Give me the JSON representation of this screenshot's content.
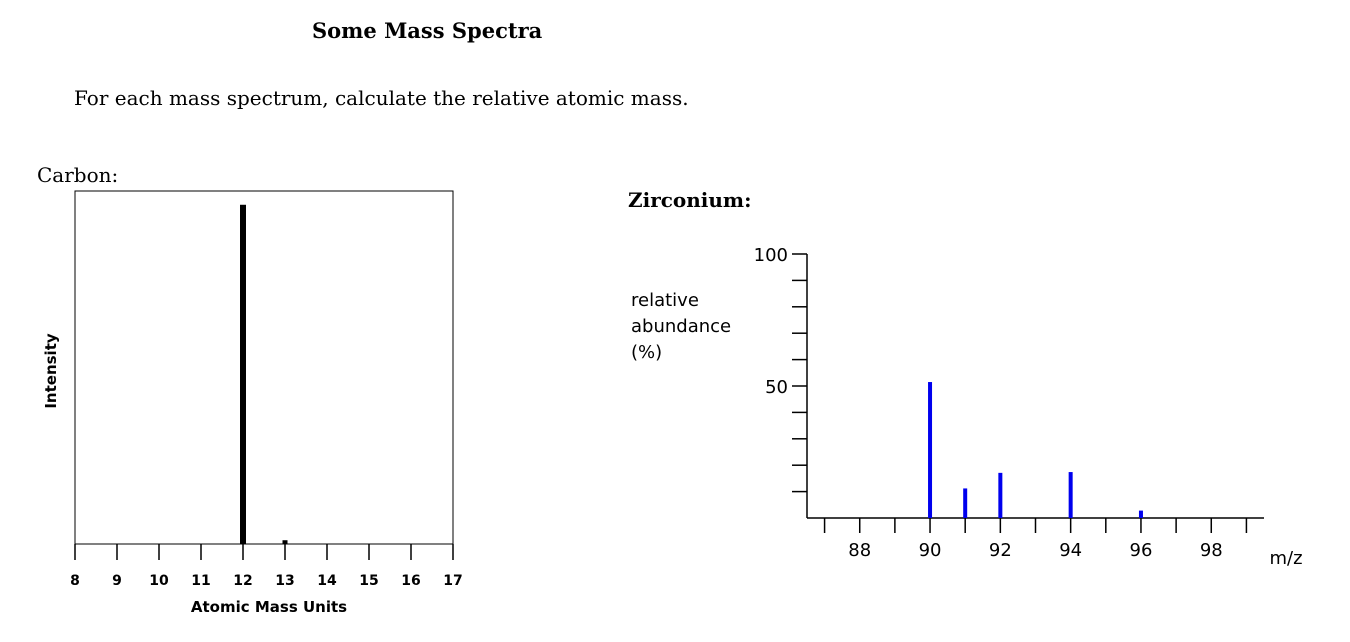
{
  "page": {
    "title": "Some Mass Spectra",
    "instructions": "For each mass spectrum, calculate the relative atomic mass."
  },
  "chart_data": [
    {
      "type": "bar",
      "label": "Carbon:",
      "title": "",
      "xlabel": "Atomic Mass Units",
      "ylabel": "Intensity",
      "xlim": [
        8,
        17
      ],
      "ylim": [
        0,
        100
      ],
      "x_ticks": [
        8,
        9,
        10,
        11,
        12,
        13,
        14,
        15,
        16,
        17
      ],
      "x": [
        12,
        13
      ],
      "values": [
        98.9,
        1.1
      ],
      "bar_color": "#000000",
      "grid": false,
      "legend": "none"
    },
    {
      "type": "bar",
      "label": "Zirconium:",
      "title": "",
      "xlabel": "m/z",
      "ylabel": "relative abundance (%)",
      "ylabel_lines": [
        "relative",
        "abundance",
        "(%)"
      ],
      "xlim": [
        86.5,
        99.5
      ],
      "ylim": [
        0,
        100
      ],
      "y_tick_labels": [
        50,
        100
      ],
      "x_tick_labels": [
        88,
        90,
        92,
        94,
        96,
        98
      ],
      "x": [
        90,
        91,
        92,
        94,
        96
      ],
      "values": [
        51.5,
        11.2,
        17.1,
        17.4,
        2.8
      ],
      "bar_color": "#0000ee",
      "grid": false,
      "legend": "none"
    }
  ]
}
